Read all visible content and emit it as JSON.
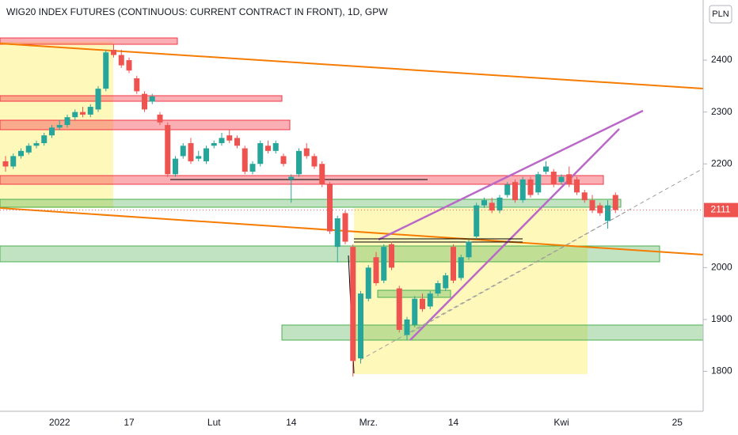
{
  "chart_data": {
    "type": "candlestick",
    "title": "WIG20 INDEX FUTURES (CONTINUOUS: CURRENT CONTRACT IN FRONT), 1D, GPW",
    "currency": "PLN",
    "up_color": "#26a69a",
    "down_color": "#ef5350",
    "categories": [
      null,
      null,
      null,
      null,
      null,
      null,
      null,
      "2022",
      null,
      null,
      null,
      null,
      null,
      null,
      null,
      null,
      "17",
      null,
      null,
      null,
      null,
      null,
      null,
      null,
      null,
      null,
      null,
      "Lut",
      null,
      null,
      null,
      null,
      null,
      null,
      null,
      null,
      null,
      "14",
      null,
      null,
      null,
      null,
      null,
      null,
      null,
      null,
      null,
      "Mrz.",
      null,
      null,
      null,
      null,
      null,
      null,
      null,
      null,
      null,
      null,
      "14",
      null,
      null,
      null,
      null,
      null,
      null,
      null,
      null,
      null,
      null,
      null,
      null,
      null,
      "Kwi",
      null,
      null,
      null,
      null,
      null,
      null,
      null,
      null,
      null,
      null,
      null,
      null,
      null,
      null,
      "25",
      null,
      null,
      null
    ],
    "open": [
      2205,
      2195,
      2215,
      2222,
      2235,
      2240,
      2255,
      2270,
      2275,
      2290,
      2300,
      2295,
      2305,
      2345,
      2420,
      2410,
      2400,
      2365,
      2335,
      2320,
      2295,
      2275,
      2180,
      2215,
      2240,
      2210,
      2205,
      2235,
      2240,
      2255,
      2250,
      2230,
      2185,
      2200,
      2235,
      2225,
      2215,
      2170,
      2180,
      2230,
      2215,
      2200,
      2160,
      2040,
      2105,
      2040,
      1825,
      1940,
      2020,
      1975,
      2045,
      1960,
      1870,
      1890,
      1940,
      1925,
      1950,
      1960,
      2040,
      1980,
      2020,
      2060,
      2120,
      2125,
      2110,
      2140,
      2165,
      2130,
      2170,
      2145,
      2185,
      2185,
      2165,
      2180,
      2170,
      2145,
      2130,
      2120,
      2090,
      2140,
      null,
      null,
      null,
      null,
      null,
      null,
      null,
      null,
      null,
      null,
      null
    ],
    "high": [
      2215,
      2220,
      2230,
      2240,
      2245,
      2260,
      2275,
      2285,
      2295,
      2305,
      2310,
      2315,
      2350,
      2420,
      2430,
      2420,
      2405,
      2370,
      2340,
      2335,
      2300,
      2280,
      2215,
      2240,
      2250,
      2225,
      2235,
      2245,
      2260,
      2265,
      2255,
      2235,
      2205,
      2245,
      2245,
      2245,
      2220,
      2180,
      2230,
      2240,
      2220,
      2205,
      2165,
      2100,
      2110,
      2045,
      1955,
      2005,
      2030,
      2045,
      2050,
      1965,
      1905,
      1945,
      1950,
      1955,
      1975,
      1990,
      2045,
      2025,
      2055,
      2125,
      2135,
      2135,
      2140,
      2165,
      2170,
      2175,
      2175,
      2185,
      2205,
      2190,
      2180,
      2195,
      2175,
      2150,
      2140,
      2125,
      2130,
      2145,
      null,
      null,
      null,
      null,
      null,
      null,
      null,
      null,
      null,
      null,
      null
    ],
    "low": [
      2185,
      2190,
      2210,
      2218,
      2230,
      2235,
      2250,
      2265,
      2270,
      2285,
      2290,
      2290,
      2300,
      2340,
      2405,
      2385,
      2375,
      2335,
      2300,
      2315,
      2275,
      2175,
      2175,
      2210,
      2200,
      2205,
      2200,
      2230,
      2235,
      2240,
      2230,
      2180,
      2180,
      2195,
      2220,
      2220,
      2195,
      2125,
      2175,
      2210,
      2190,
      2155,
      2065,
      2010,
      2045,
      1790,
      1815,
      1935,
      1965,
      1970,
      1995,
      1875,
      1860,
      1885,
      1915,
      1920,
      1945,
      1955,
      1970,
      1975,
      2015,
      2055,
      2115,
      2105,
      2105,
      2135,
      2125,
      2125,
      2135,
      2140,
      2180,
      2155,
      2160,
      2155,
      2140,
      2125,
      2105,
      2100,
      2075,
      2105,
      null,
      null,
      null,
      null,
      null,
      null,
      null,
      null,
      null,
      null,
      null
    ],
    "close": [
      2195,
      2215,
      2225,
      2235,
      2240,
      2255,
      2270,
      2275,
      2290,
      2300,
      2295,
      2310,
      2345,
      2415,
      2410,
      2390,
      2380,
      2340,
      2305,
      2330,
      2280,
      2180,
      2210,
      2235,
      2205,
      2215,
      2230,
      2240,
      2250,
      2245,
      2235,
      2185,
      2200,
      2240,
      2225,
      2240,
      2200,
      2175,
      2225,
      2215,
      2195,
      2160,
      2070,
      2095,
      2050,
      1820,
      1950,
      2000,
      1970,
      2040,
      2000,
      1880,
      1900,
      1940,
      1920,
      1950,
      1970,
      1985,
      1975,
      2020,
      2050,
      2120,
      2130,
      2110,
      2135,
      2160,
      2130,
      2170,
      2140,
      2180,
      2195,
      2160,
      2175,
      2160,
      2145,
      2130,
      2110,
      2105,
      2120,
      2111,
      null,
      null,
      null,
      null,
      null,
      null,
      null,
      null,
      null,
      null,
      null
    ],
    "last_price": 2111,
    "ylim": [
      1723,
      2516
    ],
    "yticks": [
      1800,
      1900,
      2000,
      2200,
      2300,
      2400
    ]
  }
}
